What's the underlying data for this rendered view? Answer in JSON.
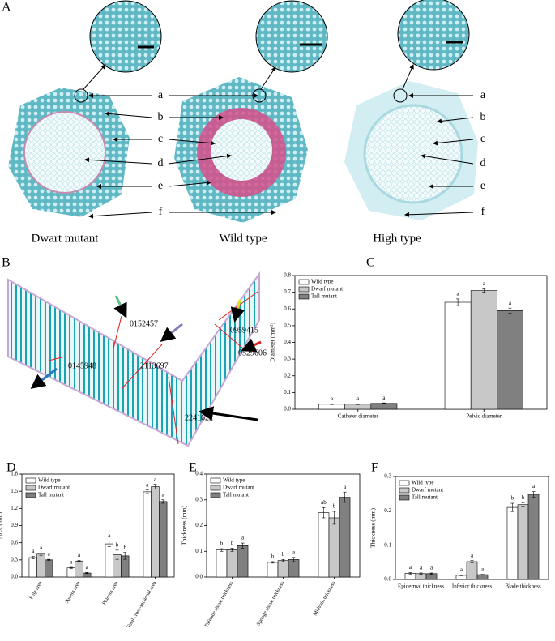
{
  "panel_labels": [
    "A",
    "B",
    "C",
    "D",
    "E",
    "F"
  ],
  "panel_a": {
    "structure_labels_center": [
      "a",
      "b",
      "c",
      "d",
      "e",
      "f"
    ],
    "structure_labels_right": [
      "a",
      "b",
      "c",
      "d",
      "e",
      "f"
    ],
    "captions": [
      "Dwart mutant",
      "Wild type",
      "High type"
    ]
  },
  "panel_b": {
    "measurements": [
      "0145948",
      "0152457",
      "2113697",
      "2241622",
      "0959415",
      "0529606"
    ]
  },
  "chart_data": [
    {
      "type": "bar",
      "ylabel": "Diameter (mm²)",
      "categories": [
        "Catheter diameter",
        "Pelvic diameter"
      ],
      "series": [
        {
          "name": "Wild type",
          "color": "#ffffff",
          "values": [
            0.03,
            0.64
          ],
          "errors": [
            0.002,
            0.02
          ],
          "letters": [
            "a",
            "a"
          ]
        },
        {
          "name": "Dwarf mutant",
          "color": "#c8c8c8",
          "values": [
            0.03,
            0.71
          ],
          "errors": [
            0.002,
            0.01
          ],
          "letters": [
            "a",
            "a"
          ]
        },
        {
          "name": "Tall mutant",
          "color": "#808080",
          "values": [
            0.035,
            0.59
          ],
          "errors": [
            0.003,
            0.015
          ],
          "letters": [
            "a",
            "a"
          ]
        }
      ],
      "ylim": [
        0,
        0.8
      ],
      "yticks": [
        {
          "value": 0,
          "label": "0.0"
        },
        0.1,
        0.2,
        0.3,
        0.4,
        0.5,
        0.6,
        0.7,
        0.8
      ]
    },
    {
      "type": "bar",
      "ylabel": "Area (mm)",
      "categories": [
        "Pulp area",
        "Xylem area",
        "Phloem area",
        "Total cross-sectional area"
      ],
      "series": [
        {
          "name": "Wild type",
          "color": "#ffffff",
          "values": [
            0.34,
            0.16,
            0.58,
            1.49
          ],
          "errors": [
            0.02,
            0.01,
            0.05,
            0.03
          ],
          "letters": [
            "a",
            "a",
            "a",
            "a"
          ]
        },
        {
          "name": "Dwarf mutant",
          "color": "#c8c8c8",
          "values": [
            0.4,
            0.28,
            0.39,
            1.58
          ],
          "errors": [
            0.02,
            0.01,
            0.08,
            0.04
          ],
          "letters": [
            "a",
            "a",
            "b",
            "a"
          ]
        },
        {
          "name": "Tall mutant",
          "color": "#808080",
          "values": [
            0.3,
            0.07,
            0.37,
            1.32
          ],
          "errors": [
            0.01,
            0.01,
            0.06,
            0.03
          ],
          "letters": [
            "a",
            "a",
            "b",
            "a"
          ]
        }
      ],
      "ylim": [
        0,
        1.8
      ],
      "yticks": [
        {
          "value": 0,
          "label": "0.0"
        },
        0.3,
        0.6,
        0.9,
        1.2,
        1.5,
        1.8
      ]
    },
    {
      "type": "bar",
      "ylabel": "Thickness (mm)",
      "categories": [
        "Palisade tissue thickness",
        "Sponge tissue thickness",
        "Midvein thickness"
      ],
      "series": [
        {
          "name": "Wild type",
          "color": "#ffffff",
          "values": [
            0.105,
            0.057,
            0.25
          ],
          "errors": [
            0.005,
            0.003,
            0.02
          ],
          "letters": [
            "b",
            "b",
            "ab"
          ]
        },
        {
          "name": "Dwarf mutant",
          "color": "#c8c8c8",
          "values": [
            0.106,
            0.064,
            0.23
          ],
          "errors": [
            0.006,
            0.004,
            0.025
          ],
          "letters": [
            "b",
            "b",
            "b"
          ]
        },
        {
          "name": "Tall mutant",
          "color": "#808080",
          "values": [
            0.122,
            0.068,
            0.31
          ],
          "errors": [
            0.01,
            0.008,
            0.02
          ],
          "letters": [
            "a",
            "a",
            "a"
          ]
        }
      ],
      "ylim": [
        0,
        0.4
      ],
      "yticks": [
        {
          "value": 0,
          "label": "0.0"
        },
        0.1,
        0.2,
        0.3,
        0.4
      ]
    },
    {
      "type": "bar",
      "ylabel": "Thickness (mm)",
      "categories": [
        "Epidermal thickness",
        "Inferior thickness",
        "Blade thickness"
      ],
      "series": [
        {
          "name": "Wild type",
          "color": "#ffffff",
          "values": [
            0.018,
            0.012,
            0.21
          ],
          "errors": [
            0.002,
            0.001,
            0.012
          ],
          "letters": [
            "a",
            "a",
            "b"
          ]
        },
        {
          "name": "Dwarf mutant",
          "color": "#c8c8c8",
          "values": [
            0.017,
            0.052,
            0.218
          ],
          "errors": [
            0.002,
            0.003,
            0.006
          ],
          "letters": [
            "a",
            "a",
            "b"
          ]
        },
        {
          "name": "Tall mutant",
          "color": "#808080",
          "values": [
            0.017,
            0.014,
            0.248
          ],
          "errors": [
            0.002,
            0.001,
            0.008
          ],
          "letters": [
            "a",
            "a",
            "a"
          ]
        }
      ],
      "ylim": [
        0,
        0.3
      ],
      "yticks": [
        {
          "value": 0,
          "label": "0.0"
        },
        0.1,
        0.2,
        0.3
      ]
    }
  ]
}
